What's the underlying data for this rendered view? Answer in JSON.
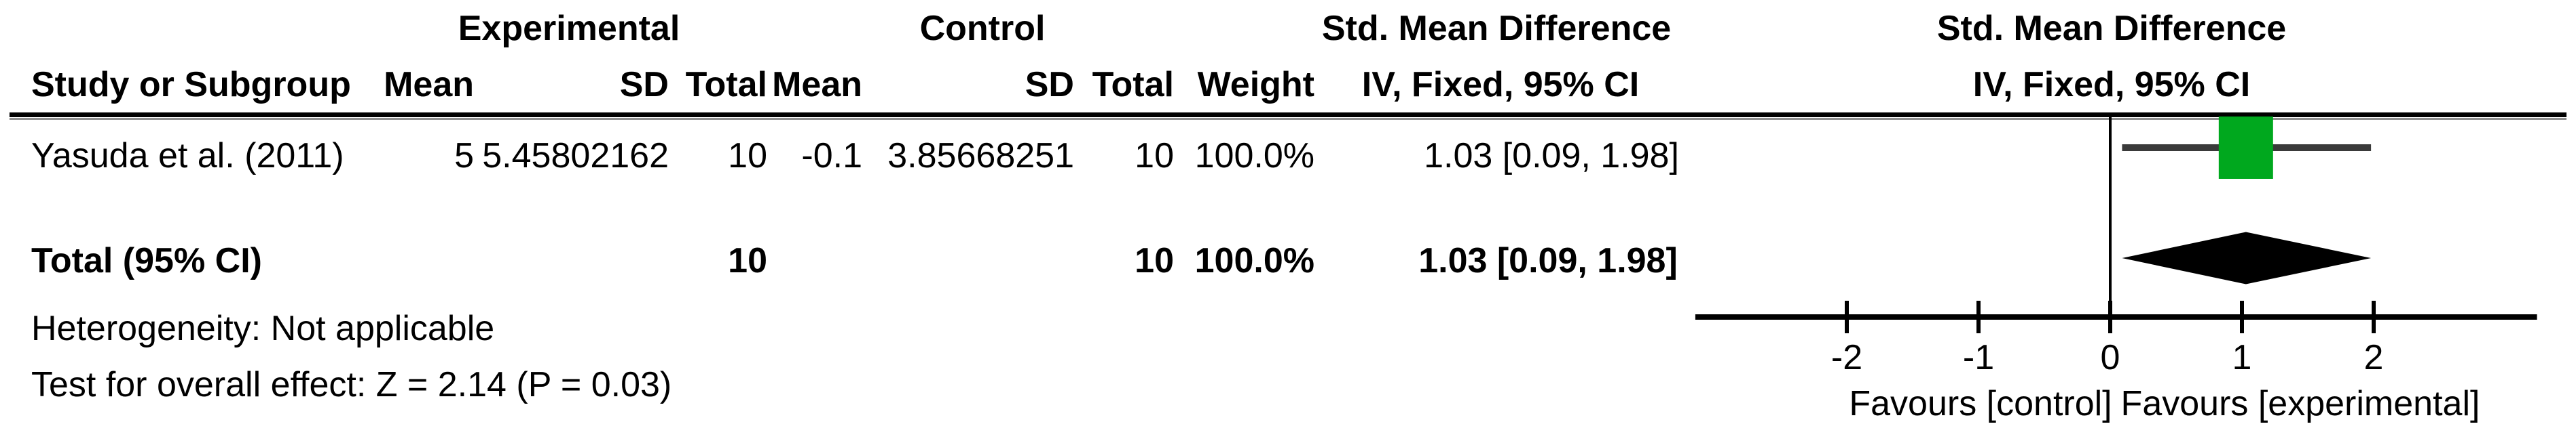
{
  "table": {
    "group_headers": {
      "experimental": "Experimental",
      "control": "Control",
      "smd_table": "Std. Mean Difference",
      "smd_plot": "Std. Mean Difference"
    },
    "col_headers": {
      "study": "Study or Subgroup",
      "mean1": "Mean",
      "sd1": "SD",
      "total1": "Total",
      "mean2": "Mean",
      "sd2": "SD",
      "total2": "Total",
      "weight": "Weight",
      "ci_table": "IV, Fixed, 95% CI",
      "ci_plot": "IV, Fixed, 95% CI"
    },
    "study_row": {
      "study": "Yasuda et al. (2011)",
      "mean1": "5",
      "sd1": "5.45802162",
      "total1": "10",
      "mean2": "-0.1",
      "sd2": "3.85668251",
      "total2": "10",
      "weight": "100.0%",
      "ci": "1.03 [0.09, 1.98]"
    },
    "total_row": {
      "label": "Total (95% CI)",
      "total1": "10",
      "total2": "10",
      "weight": "100.0%",
      "ci": "1.03 [0.09, 1.98]"
    },
    "footer": {
      "heterogeneity": "Heterogeneity: Not applicable",
      "overall_effect": "Test for overall effect: Z = 2.14 (P = 0.03)"
    }
  },
  "chart_data": {
    "type": "forest",
    "effect_measure": "Std. Mean Difference",
    "method": "IV, Fixed, 95% CI",
    "studies": [
      {
        "name": "Yasuda et al. (2011)",
        "estimate": 1.03,
        "ci_low": 0.09,
        "ci_high": 1.98,
        "weight_pct": 100.0,
        "marker": "green-square"
      }
    ],
    "total": {
      "name": "Total (95% CI)",
      "estimate": 1.03,
      "ci_low": 0.09,
      "ci_high": 1.98,
      "marker": "black-diamond"
    },
    "x_ticks": [
      -2,
      -1,
      0,
      1,
      2
    ],
    "xlim": [
      -3.15,
      3.24
    ],
    "x_axis_labels": {
      "left": "Favours [control]",
      "right": "Favours [experimental]"
    },
    "grid": false,
    "zero_line": 0
  },
  "colors": {
    "text": "#000000",
    "line_black": "#000000",
    "line_gray": "#8f8f8f",
    "ci_line": "#3a3a3a",
    "marker_green": "#00a81e",
    "diamond_black": "#000000"
  }
}
